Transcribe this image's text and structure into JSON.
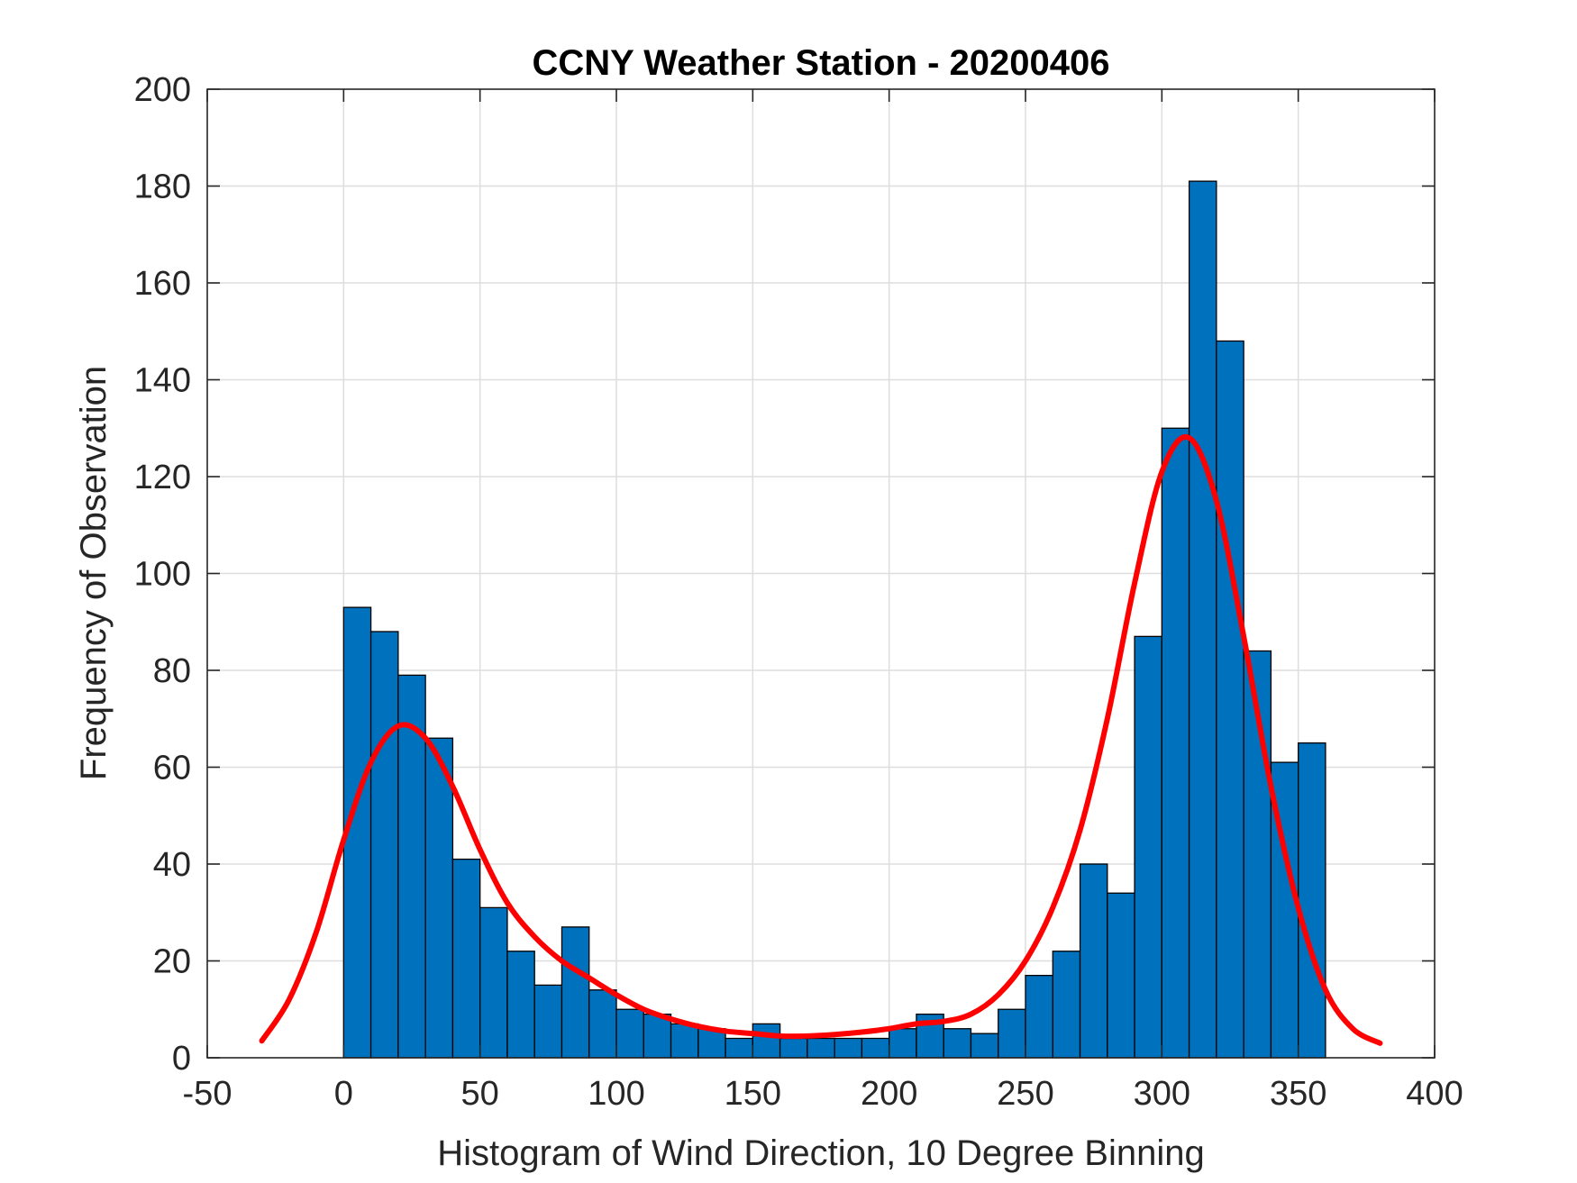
{
  "chart_data": {
    "type": "bar",
    "title": "CCNY Weather Station - 20200406",
    "xlabel": "Histogram of Wind Direction, 10 Degree Binning",
    "ylabel": "Frequency of Observation",
    "xlim": [
      -50,
      400
    ],
    "ylim": [
      0,
      200
    ],
    "xticks": [
      -50,
      0,
      50,
      100,
      150,
      200,
      250,
      300,
      350,
      400
    ],
    "yticks": [
      0,
      20,
      40,
      60,
      80,
      100,
      120,
      140,
      160,
      180,
      200
    ],
    "grid": true,
    "bin_width": 10,
    "bins_start": [
      0,
      10,
      20,
      30,
      40,
      50,
      60,
      70,
      80,
      90,
      100,
      110,
      120,
      130,
      140,
      150,
      160,
      170,
      180,
      190,
      200,
      210,
      220,
      230,
      240,
      250,
      260,
      270,
      280,
      290,
      300,
      310,
      320,
      330,
      340,
      350
    ],
    "values": [
      93,
      88,
      79,
      66,
      41,
      31,
      22,
      15,
      27,
      14,
      10,
      9,
      7,
      6,
      4,
      7,
      4,
      4,
      4,
      4,
      6,
      9,
      6,
      5,
      10,
      17,
      22,
      40,
      34,
      87,
      130,
      181,
      148,
      84,
      61,
      65
    ],
    "bar_color": "#0072BD",
    "fit_curve": {
      "color": "#FF0000",
      "x": [
        -30,
        -20,
        -10,
        0,
        10,
        20,
        30,
        40,
        50,
        60,
        70,
        80,
        90,
        100,
        110,
        120,
        130,
        140,
        150,
        160,
        170,
        180,
        190,
        200,
        210,
        220,
        230,
        240,
        250,
        260,
        270,
        280,
        290,
        300,
        310,
        320,
        330,
        340,
        350,
        360,
        370,
        380
      ],
      "y": [
        3.5,
        12,
        26,
        45,
        61,
        68.5,
        66,
        56,
        43,
        32,
        25,
        20,
        16.5,
        13,
        10,
        8,
        6.5,
        5.5,
        5,
        4.5,
        4.5,
        4.8,
        5.3,
        6,
        7,
        7.5,
        9,
        13,
        20,
        31,
        47,
        70,
        98,
        121,
        128,
        115,
        87,
        56,
        31,
        14,
        6,
        3
      ]
    }
  }
}
